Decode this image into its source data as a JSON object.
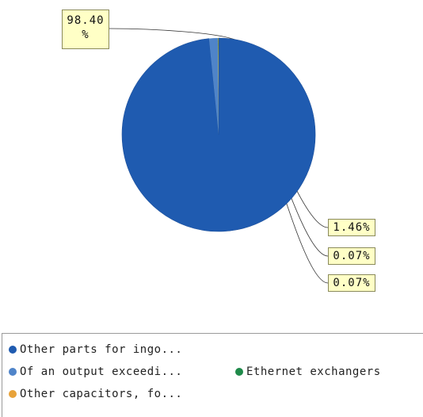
{
  "chart_data": {
    "type": "pie",
    "slices": [
      {
        "name": "Other parts for ingo...",
        "value": 98.4,
        "label": "98.40\n%",
        "color": "#1f5bb0"
      },
      {
        "name": "Of an output exceedi...",
        "value": 1.46,
        "label": "1.46%",
        "color": "#4f84c9"
      },
      {
        "name": "Ethernet exchangers",
        "value": 0.07,
        "label": "0.07%",
        "color": "#1f8a4a"
      },
      {
        "name": "Other capacitors, fo...",
        "value": 0.07,
        "label": "0.07%",
        "color": "#e8a33a"
      }
    ],
    "legend_rows": [
      [
        0
      ],
      [
        1,
        2
      ],
      [
        3
      ]
    ],
    "legend_position": "bottom"
  }
}
